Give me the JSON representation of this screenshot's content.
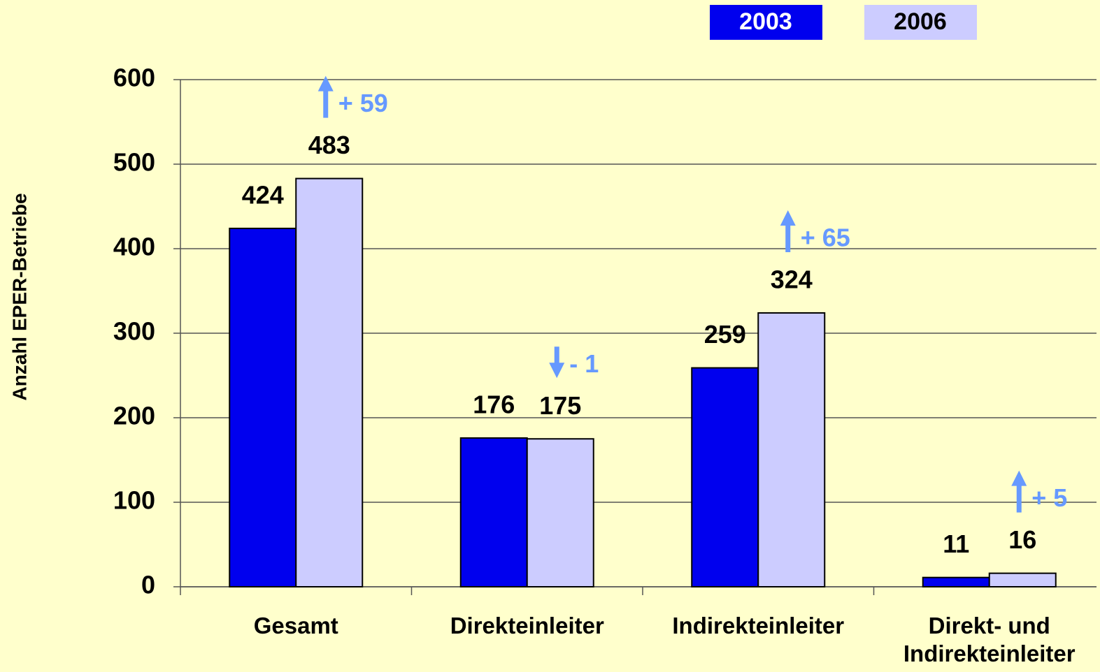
{
  "chart_data": {
    "type": "bar",
    "y_label": "Anzahl EPER-Betriebe",
    "categories": [
      "Gesamt",
      "Direkteinleiter",
      "Indirekteinleiter",
      "Direkt- und Indirekteinleiter"
    ],
    "series": [
      {
        "name": "2003",
        "color": "#0000ee",
        "values": [
          424,
          176,
          259,
          11
        ]
      },
      {
        "name": "2006",
        "color": "#ccccff",
        "values": [
          483,
          175,
          324,
          16
        ]
      }
    ],
    "annotations": [
      "+ 59",
      "- 1",
      "+ 65",
      "+ 5"
    ],
    "annotation_color": "#6699ff",
    "ylim": [
      0,
      600
    ],
    "yticks": [
      0,
      100,
      200,
      300,
      400,
      500,
      600
    ],
    "grid": true
  }
}
